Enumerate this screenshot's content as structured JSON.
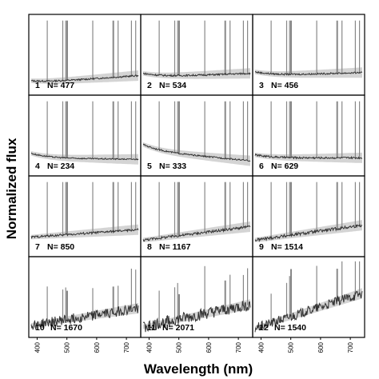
{
  "chart_data": {
    "type": "line",
    "xlabel": "Wavelength (nm)",
    "ylabel": "Normalized flux",
    "grid": false,
    "layout": "4x3 panel grid",
    "xlim": [
      380,
      740
    ],
    "x_ticks": [
      400,
      500,
      600,
      700
    ],
    "panels": [
      {
        "id": "1",
        "label": "1",
        "n_label": "N= 477",
        "n": 477,
        "start": 0.12,
        "end": 0.22,
        "curve": 0.03
      },
      {
        "id": "2",
        "label": "2",
        "n_label": "N= 534",
        "n": 534,
        "start": 0.2,
        "end": 0.25,
        "curve": 0.05
      },
      {
        "id": "3",
        "label": "3",
        "n_label": "N= 456",
        "n": 456,
        "start": 0.22,
        "end": 0.26,
        "curve": 0.05
      },
      {
        "id": "4",
        "label": "4",
        "n_label": "N= 234",
        "n": 234,
        "start": 0.2,
        "end": 0.18,
        "curve": 0.06
      },
      {
        "id": "5",
        "label": "5",
        "n_label": "N= 333",
        "n": 333,
        "start": 0.3,
        "end": 0.16,
        "curve": 0.08
      },
      {
        "id": "6",
        "label": "6",
        "n_label": "N= 629",
        "n": 629,
        "start": 0.2,
        "end": 0.2,
        "curve": 0.04
      },
      {
        "id": "7",
        "label": "7",
        "n_label": "N= 850",
        "n": 850,
        "start": 0.22,
        "end": 0.32,
        "curve": 0.0
      },
      {
        "id": "8",
        "label": "8",
        "n_label": "N= 1167",
        "n": 1167,
        "start": 0.18,
        "end": 0.36,
        "curve": 0.0
      },
      {
        "id": "9",
        "label": "9",
        "n_label": "N= 1514",
        "n": 1514,
        "start": 0.18,
        "end": 0.38,
        "curve": 0.0
      },
      {
        "id": "10",
        "label": "10",
        "n_label": "N= 1670",
        "n": 1670,
        "start": 0.12,
        "end": 0.35,
        "curve": 0.0
      },
      {
        "id": "11",
        "label": "11",
        "n_label": "N= 2071",
        "n": 2071,
        "start": 0.1,
        "end": 0.4,
        "curve": 0.0
      },
      {
        "id": "12",
        "label": "12",
        "n_label": "N= 1540",
        "n": 1540,
        "start": 0.08,
        "end": 0.55,
        "curve": 0.0
      }
    ],
    "emission_lines_nm": [
      434,
      486,
      496,
      501,
      587,
      656,
      672,
      717,
      731
    ],
    "colors": {
      "mean_line": "#333333",
      "spread_band": "#d4d4d4",
      "emission": "#888888",
      "frame": "#000000"
    }
  }
}
